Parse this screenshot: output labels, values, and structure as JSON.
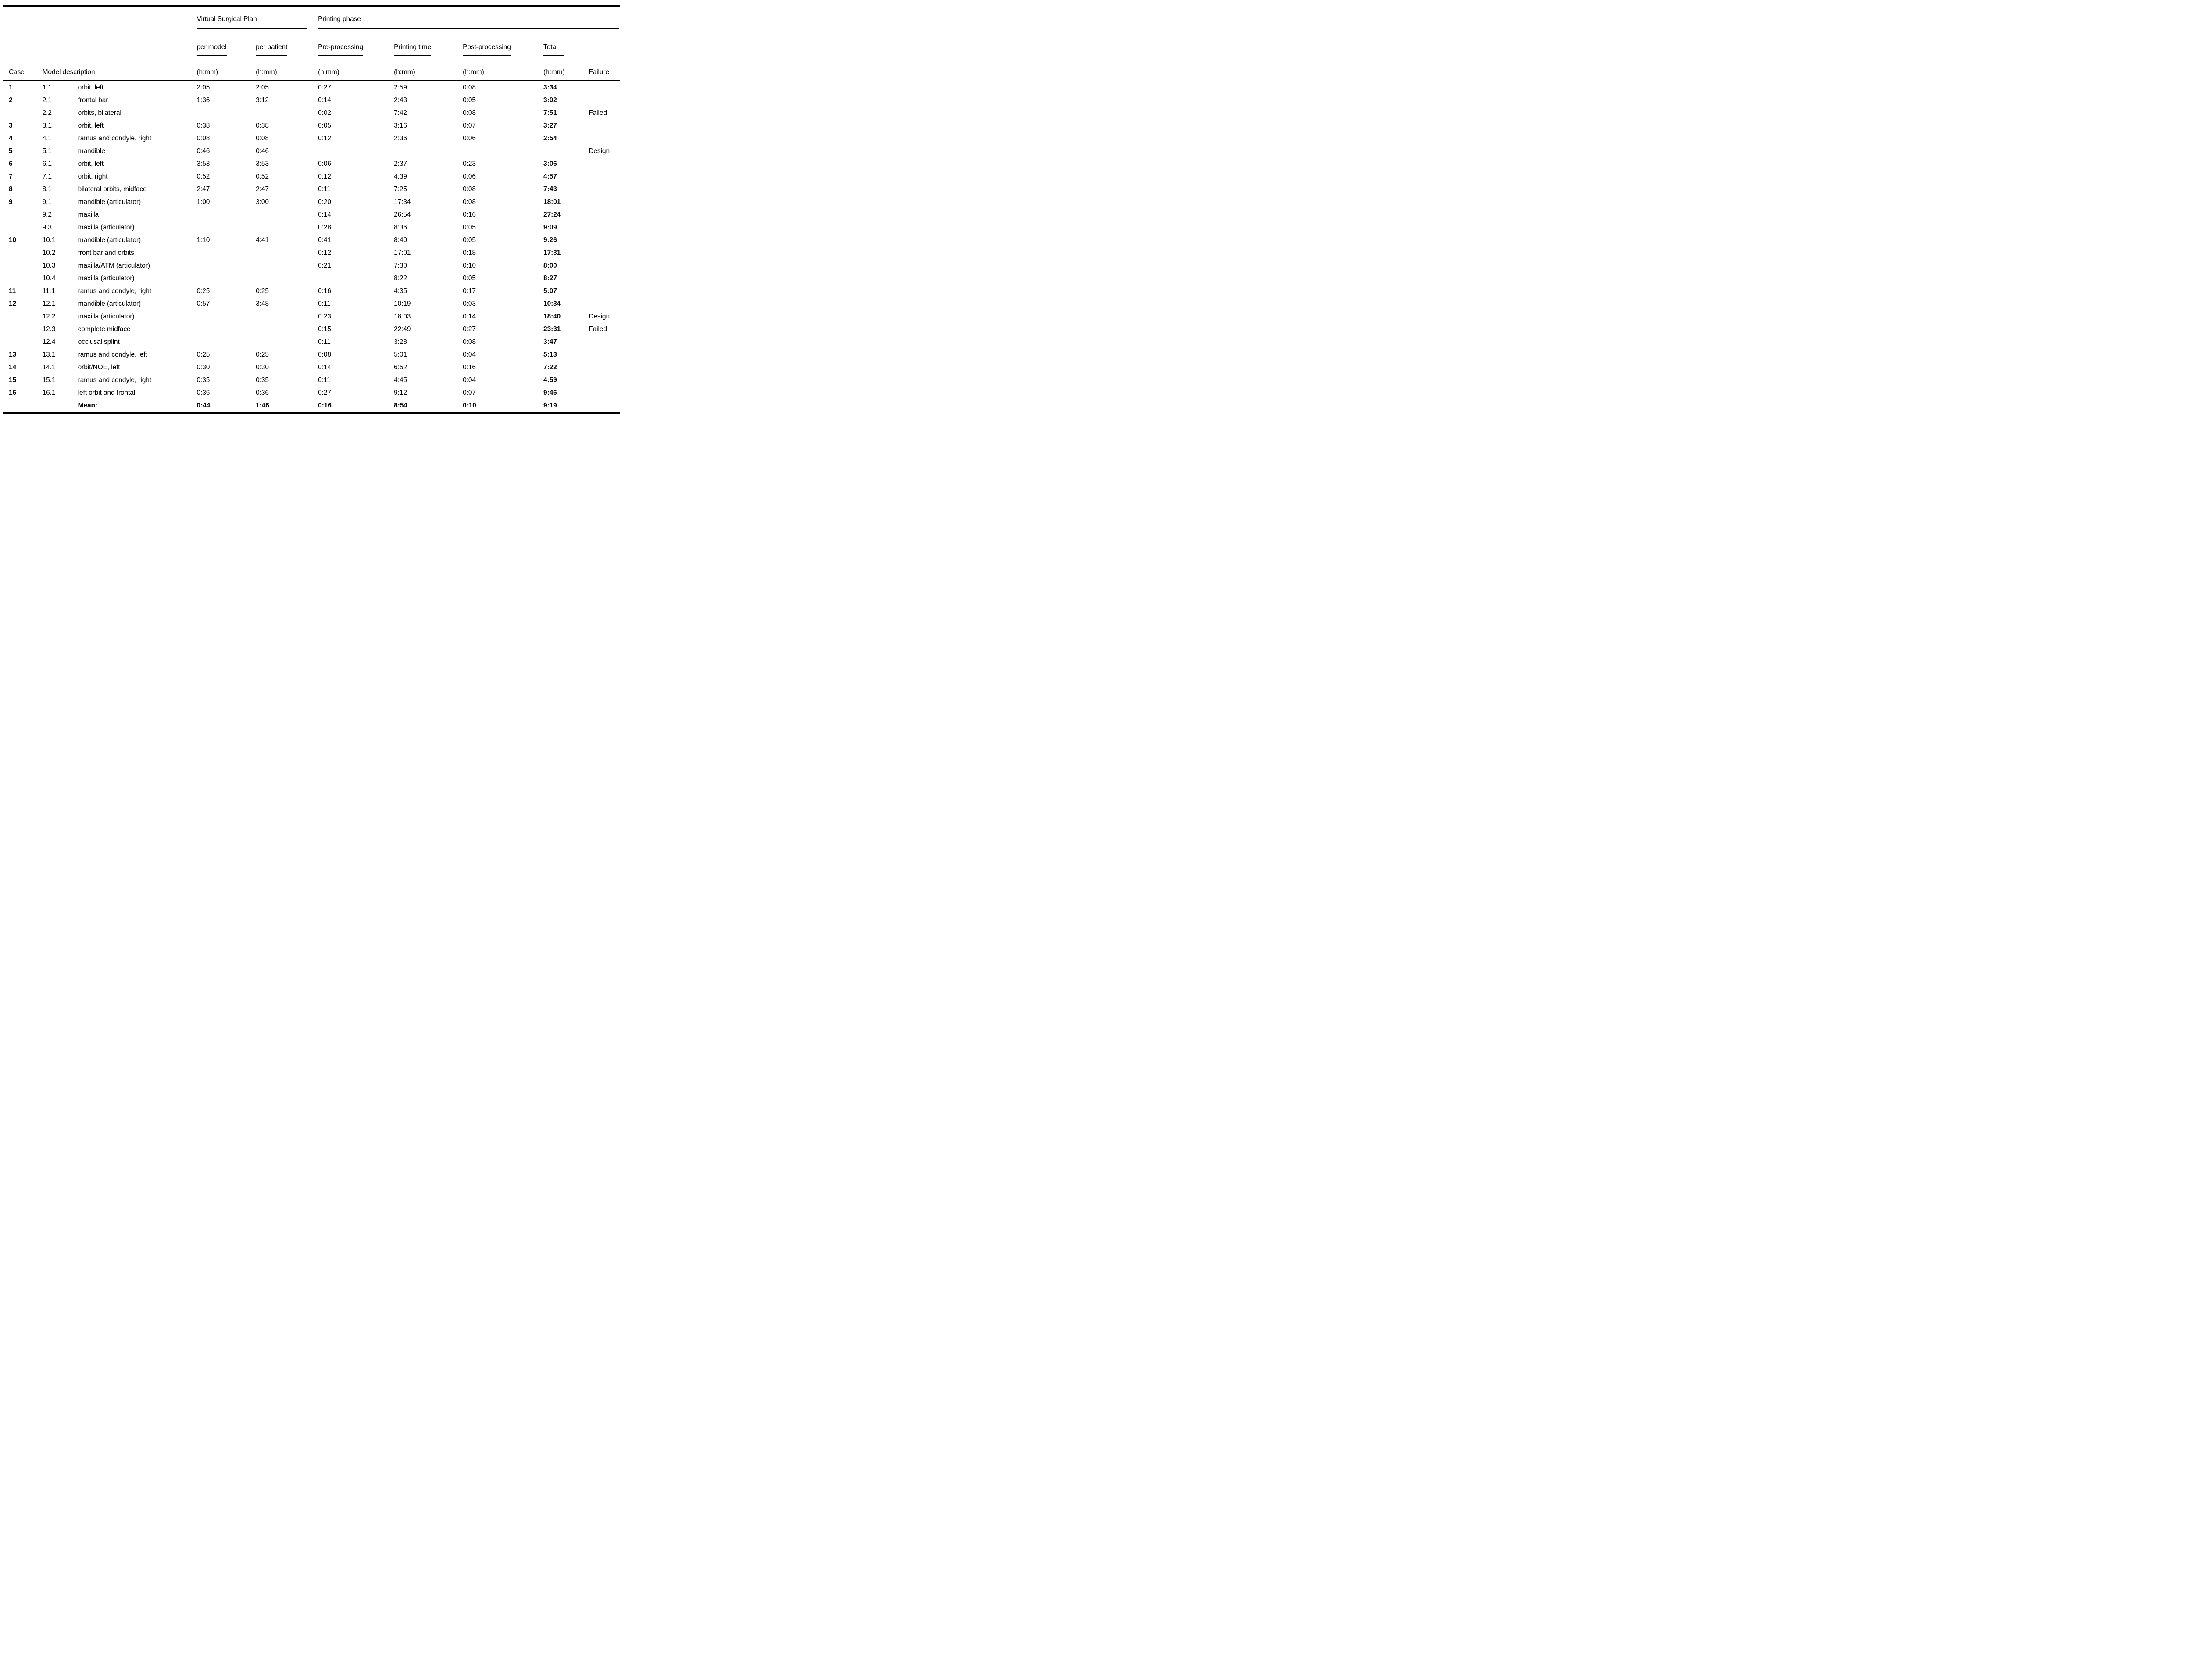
{
  "table": {
    "header": {
      "case": "Case",
      "model_description": "Model description",
      "vsp_group": "Virtual Surgical Plan",
      "printing_group": "Printing phase",
      "columns": [
        {
          "label": "per model",
          "unit": "(h:mm)"
        },
        {
          "label": "per patient",
          "unit": "(h:mm)"
        },
        {
          "label": "Pre-processing",
          "unit": "(h:mm)"
        },
        {
          "label": "Printing time",
          "unit": "(h:mm)"
        },
        {
          "label": "Post-processing",
          "unit": "(h:mm)"
        },
        {
          "label": "Total",
          "unit": "(h:mm)"
        }
      ],
      "failure": "Failure"
    },
    "rows": [
      {
        "case": "1",
        "model": "1.1",
        "desc": "orbit, left",
        "per_model": "2:05",
        "per_patient": "2:05",
        "pre": "0:27",
        "print": "2:59",
        "post": "0:08",
        "total": "3:34",
        "failure": ""
      },
      {
        "case": "2",
        "model": "2.1",
        "desc": "frontal bar",
        "per_model": "1:36",
        "per_patient": "3:12",
        "pre": "0:14",
        "print": "2:43",
        "post": "0:05",
        "total": "3:02",
        "failure": ""
      },
      {
        "case": "",
        "model": "2.2",
        "desc": "orbits, bilateral",
        "per_model": "",
        "per_patient": "",
        "pre": "0:02",
        "print": "7:42",
        "post": "0:08",
        "total": "7:51",
        "failure": "Failed"
      },
      {
        "case": "3",
        "model": "3.1",
        "desc": "orbit, left",
        "per_model": "0:38",
        "per_patient": "0:38",
        "pre": "0:05",
        "print": "3:16",
        "post": "0:07",
        "total": "3:27",
        "failure": ""
      },
      {
        "case": "4",
        "model": "4.1",
        "desc": "ramus and condyle, right",
        "per_model": "0:08",
        "per_patient": "0:08",
        "pre": "0:12",
        "print": "2:36",
        "post": "0:06",
        "total": "2:54",
        "failure": ""
      },
      {
        "case": "5",
        "model": "5.1",
        "desc": "mandible",
        "per_model": "0:46",
        "per_patient": "0:46",
        "pre": "",
        "print": "",
        "post": "",
        "total": "",
        "failure": "Design"
      },
      {
        "case": "6",
        "model": "6.1",
        "desc": "orbit, left",
        "per_model": "3:53",
        "per_patient": "3:53",
        "pre": "0:06",
        "print": "2:37",
        "post": "0:23",
        "total": "3:06",
        "failure": ""
      },
      {
        "case": "7",
        "model": "7.1",
        "desc": "orbit, right",
        "per_model": "0:52",
        "per_patient": "0:52",
        "pre": "0:12",
        "print": "4:39",
        "post": "0:06",
        "total": "4:57",
        "failure": ""
      },
      {
        "case": "8",
        "model": "8.1",
        "desc": "bilateral orbits, midface",
        "per_model": "2:47",
        "per_patient": "2:47",
        "pre": "0:11",
        "print": "7:25",
        "post": "0:08",
        "total": "7:43",
        "failure": ""
      },
      {
        "case": "9",
        "model": "9.1",
        "desc": "mandible (articulator)",
        "per_model": "1:00",
        "per_patient": "3:00",
        "pre": "0:20",
        "print": "17:34",
        "post": "0:08",
        "total": "18:01",
        "failure": ""
      },
      {
        "case": "",
        "model": "9.2",
        "desc": "maxilla",
        "per_model": "",
        "per_patient": "",
        "pre": "0:14",
        "print": "26:54",
        "post": "0:16",
        "total": "27:24",
        "failure": ""
      },
      {
        "case": "",
        "model": "9.3",
        "desc": "maxilla (articulator)",
        "per_model": "",
        "per_patient": "",
        "pre": "0:28",
        "print": "8:36",
        "post": "0:05",
        "total": "9:09",
        "failure": ""
      },
      {
        "case": "10",
        "model": "10.1",
        "desc": "mandible (articulator)",
        "per_model": "1:10",
        "per_patient": "4:41",
        "pre": "0:41",
        "print": "8:40",
        "post": "0:05",
        "total": "9:26",
        "failure": ""
      },
      {
        "case": "",
        "model": "10.2",
        "desc": "front bar and orbits",
        "per_model": "",
        "per_patient": "",
        "pre": "0:12",
        "print": "17:01",
        "post": "0:18",
        "total": "17:31",
        "failure": ""
      },
      {
        "case": "",
        "model": "10.3",
        "desc": "maxilla/ATM (articulator)",
        "per_model": "",
        "per_patient": "",
        "pre": "0:21",
        "print": "7:30",
        "post": "0:10",
        "total": "8:00",
        "failure": ""
      },
      {
        "case": "",
        "model": "10.4",
        "desc": "maxilla (articulator)",
        "per_model": "",
        "per_patient": "",
        "pre": "",
        "print": "8:22",
        "post": "0:05",
        "total": "8:27",
        "failure": ""
      },
      {
        "case": "11",
        "model": "11.1",
        "desc": "ramus and condyle, right",
        "per_model": "0:25",
        "per_patient": "0:25",
        "pre": "0:16",
        "print": "4:35",
        "post": "0:17",
        "total": "5:07",
        "failure": ""
      },
      {
        "case": "12",
        "model": "12.1",
        "desc": "mandible (articulator)",
        "per_model": "0:57",
        "per_patient": "3:48",
        "pre": "0:11",
        "print": "10:19",
        "post": "0:03",
        "total": "10:34",
        "failure": ""
      },
      {
        "case": "",
        "model": "12.2",
        "desc": "maxilla (articulator)",
        "per_model": "",
        "per_patient": "",
        "pre": "0:23",
        "print": "18:03",
        "post": "0:14",
        "total": "18:40",
        "failure": "Design"
      },
      {
        "case": "",
        "model": "12.3",
        "desc": "complete midface",
        "per_model": "",
        "per_patient": "",
        "pre": "0:15",
        "print": "22:49",
        "post": "0:27",
        "total": "23:31",
        "failure": "Failed"
      },
      {
        "case": "",
        "model": "12.4",
        "desc": "occlusal splint",
        "per_model": "",
        "per_patient": "",
        "pre": "0:11",
        "print": "3:28",
        "post": "0:08",
        "total": "3:47",
        "failure": ""
      },
      {
        "case": "13",
        "model": "13.1",
        "desc": "ramus and condyle, left",
        "per_model": "0:25",
        "per_patient": "0:25",
        "pre": "0:08",
        "print": "5:01",
        "post": "0:04",
        "total": "5:13",
        "failure": ""
      },
      {
        "case": "14",
        "model": "14.1",
        "desc": "orbit/NOE, left",
        "per_model": "0:30",
        "per_patient": "0:30",
        "pre": "0:14",
        "print": "6:52",
        "post": "0:16",
        "total": "7:22",
        "failure": ""
      },
      {
        "case": "15",
        "model": "15.1",
        "desc": "ramus and condyle, right",
        "per_model": "0:35",
        "per_patient": "0:35",
        "pre": "0:11",
        "print": "4:45",
        "post": "0:04",
        "total": "4:59",
        "failure": ""
      },
      {
        "case": "16",
        "model": "16.1",
        "desc": "left orbit and frontal",
        "per_model": "0:36",
        "per_patient": "0:36",
        "pre": "0:27",
        "print": "9:12",
        "post": "0:07",
        "total": "9:46",
        "failure": ""
      }
    ],
    "mean_row": {
      "label": "Mean:",
      "per_model": "0:44",
      "per_patient": "1:46",
      "pre": "0:16",
      "print": "8:54",
      "post": "0:10",
      "total": "9:19",
      "failure": ""
    }
  }
}
